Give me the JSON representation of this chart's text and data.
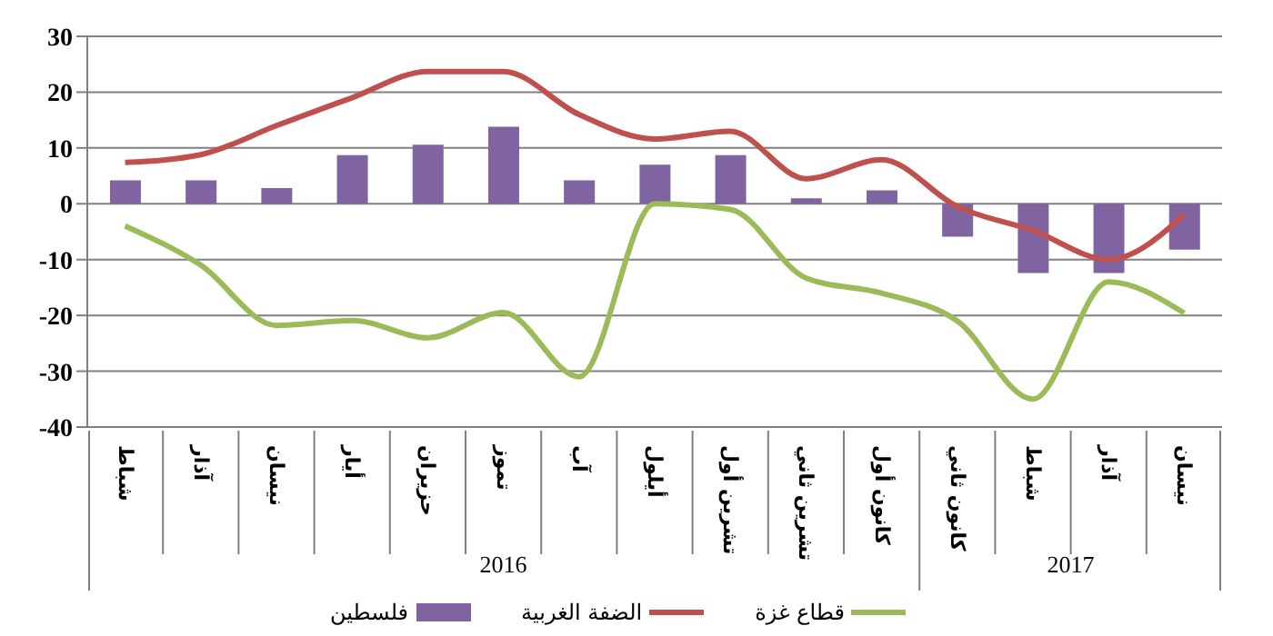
{
  "chart_data": {
    "type": "bar",
    "categories": [
      "شباط",
      "آذار",
      "نيسان",
      "أيار",
      "حزيران",
      "تموز",
      "آب",
      "أيلول",
      "تشرين أول",
      "تشرين ثاني",
      "كانون أول",
      "كانون ثاني",
      "شباط",
      "آذار",
      "نيسان"
    ],
    "annotations": [
      "2016",
      "2017"
    ],
    "series": [
      {
        "name": "فلسطين",
        "color": "#8064a2",
        "values": [
          4.2,
          4.2,
          2.8,
          8.7,
          10.6,
          13.8,
          4.2,
          7,
          8.7,
          1,
          2.4,
          -5.9,
          -12.4,
          -12.4,
          -8.2
        ]
      },
      {
        "name": "الضفة الغربية",
        "type": "line",
        "color": "#c0504d",
        "values": [
          7.4,
          8.8,
          14,
          19,
          23.7,
          23.7,
          16,
          11.6,
          13,
          4.5,
          7.9,
          -0.5,
          -4.8,
          -10,
          -2
        ]
      },
      {
        "name": "قطاع غزة",
        "type": "line",
        "color": "#9bbb59",
        "values": [
          -4,
          -11,
          -21.8,
          -20.9,
          -24,
          -19.5,
          -31,
          0,
          -1,
          -13.3,
          -16,
          -21,
          -35,
          -14,
          -19.6
        ]
      }
    ],
    "ylim": [
      -40,
      30
    ],
    "yticks": [
      -40,
      -30,
      -20,
      -10,
      0,
      10,
      20,
      30
    ],
    "grid": "y",
    "legend": "bottom",
    "marker": "none",
    "line_style": "solid"
  }
}
